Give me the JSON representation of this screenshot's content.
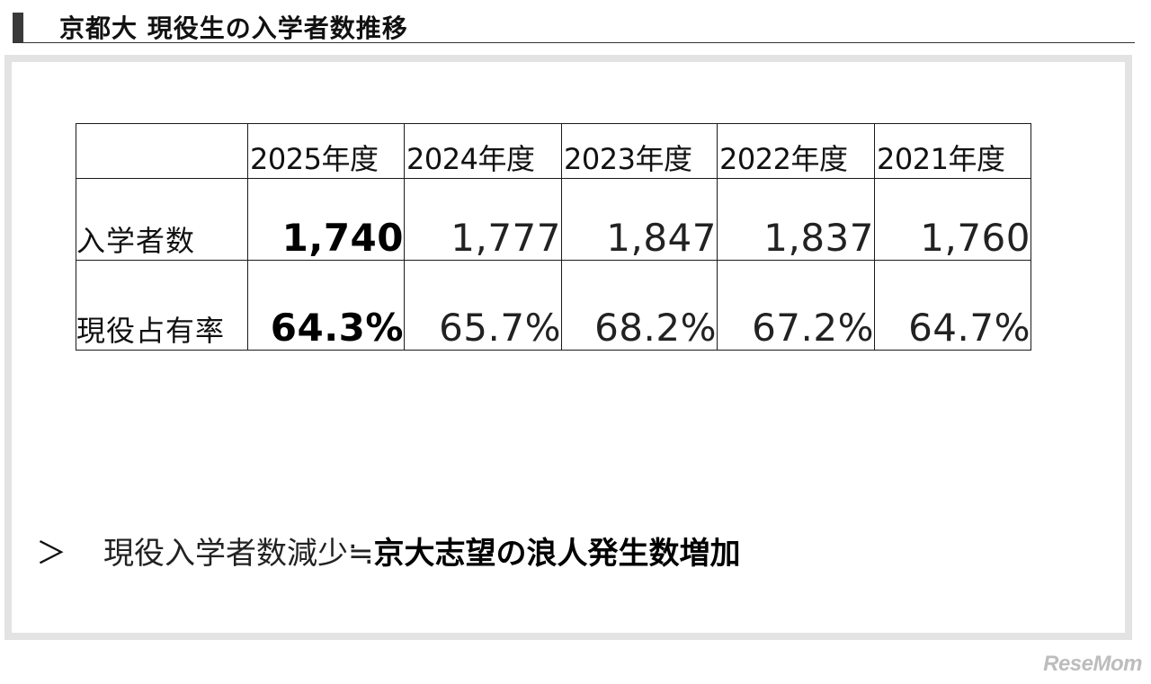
{
  "header": {
    "title": "京都大 現役生の入学者数推移"
  },
  "table": {
    "years": [
      "2025年度",
      "2024年度",
      "2023年度",
      "2022年度",
      "2021年度"
    ],
    "rows": [
      {
        "label": "入学者数",
        "values": [
          "1,740",
          "1,777",
          "1,847",
          "1,837",
          "1,760"
        ]
      },
      {
        "label": "現役占有率",
        "values": [
          "64.3%",
          "65.7%",
          "68.2%",
          "67.2%",
          "64.7%"
        ]
      }
    ]
  },
  "conclusion": {
    "arrow": "＞",
    "normal_text": "現役入学者数減少≒",
    "bold_text": "京大志望の浪人発生数増加"
  },
  "watermark": "ReseMom"
}
